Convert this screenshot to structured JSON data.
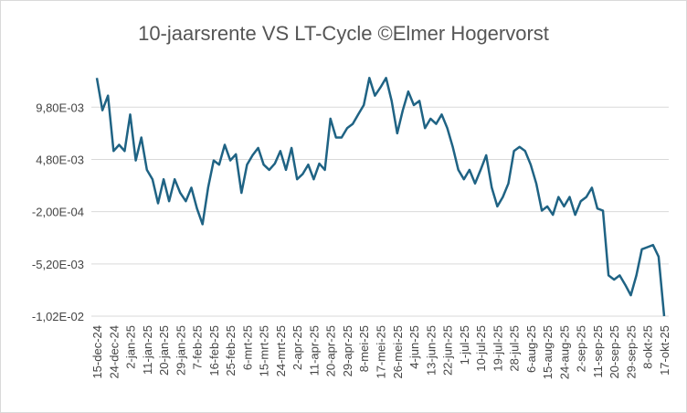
{
  "chart_data": {
    "type": "line",
    "title": "10-jaarsrente VS LT-Cycle ©Elmer Hogervorst",
    "categories": [
      "15-dec-24",
      null,
      null,
      "24-dec-24",
      null,
      null,
      "2-jan-25",
      null,
      null,
      "11-jan-25",
      null,
      null,
      "20-jan-25",
      null,
      null,
      "29-jan-25",
      null,
      null,
      "7-feb-25",
      null,
      null,
      "16-feb-25",
      null,
      null,
      "25-feb-25",
      null,
      null,
      "6-mrt-25",
      null,
      null,
      "15-mrt-25",
      null,
      null,
      "24-mrt-25",
      null,
      null,
      "2-apr-25",
      null,
      null,
      "11-apr-25",
      null,
      null,
      "20-apr-25",
      null,
      null,
      "29-apr-25",
      null,
      null,
      "8-mei-25",
      null,
      null,
      "17-mei-25",
      null,
      null,
      "26-mei-25",
      null,
      null,
      "4-jun-25",
      null,
      null,
      "13-jun-25",
      null,
      null,
      "22-jun-25",
      null,
      null,
      "1-jul-25",
      null,
      null,
      "10-jul-25",
      null,
      null,
      "19-jul-25",
      null,
      null,
      "28-jul-25",
      null,
      null,
      "6-aug-25",
      null,
      null,
      "15-aug-25",
      null,
      null,
      "24-aug-25",
      null,
      null,
      "2-sep-25",
      null,
      null,
      "11-sep-25",
      null,
      null,
      "20-sep-25",
      null,
      null,
      "29-sep-25",
      null,
      null,
      "8-okt-25",
      null,
      null,
      "17-okt-25"
    ],
    "series": [
      {
        "name": "10-jaarsrente",
        "color": "#1f6384",
        "values": [
          0.0126,
          0.0095,
          0.0109,
          0.0056,
          0.0062,
          0.0056,
          0.0091,
          0.0047,
          0.0069,
          0.0038,
          0.0029,
          0.0006,
          0.0029,
          0.0008,
          0.0029,
          0.0016,
          0.0008,
          0.0021,
          0.0001,
          -0.0014,
          0.0021,
          0.0047,
          0.0043,
          0.0062,
          0.0047,
          0.0053,
          0.0016,
          0.0043,
          0.0052,
          0.0059,
          0.0043,
          0.0038,
          0.0044,
          0.0056,
          0.0038,
          0.0059,
          0.0029,
          0.0034,
          0.0043,
          0.0029,
          0.0044,
          0.0038,
          0.0087,
          0.0069,
          0.0069,
          0.0078,
          0.0082,
          0.0091,
          0.01,
          0.0126,
          0.0109,
          0.0117,
          0.0126,
          0.0104,
          0.0073,
          0.0095,
          0.0113,
          0.01,
          0.0104,
          0.0078,
          0.0087,
          0.0082,
          0.0091,
          0.0078,
          0.006,
          0.0038,
          0.0029,
          0.0038,
          0.0025,
          0.0038,
          0.0052,
          0.0021,
          0.0003,
          0.0012,
          0.0025,
          0.0056,
          0.006,
          0.0056,
          0.0043,
          0.0025,
          -0.0001,
          0.0003,
          -0.0005,
          0.0012,
          0.0003,
          0.0012,
          -0.0005,
          0.0008,
          0.0012,
          0.0021,
          0.0001,
          -0.0001,
          -0.0063,
          -0.0067,
          -0.0063,
          -0.0072,
          -0.0082,
          -0.0063,
          -0.0038,
          -0.0036,
          -0.0034,
          -0.0045,
          -0.0102
        ]
      }
    ],
    "ylim": [
      -0.0102,
      0.0135
    ],
    "yticks": [
      {
        "value": -0.0102,
        "label": "-1,02E-02"
      },
      {
        "value": -0.0052,
        "label": "-5,20E-03"
      },
      {
        "value": -0.0002,
        "label": "-2,00E-04"
      },
      {
        "value": 0.0048,
        "label": "4,80E-03"
      },
      {
        "value": 0.0098,
        "label": "9,80E-03"
      }
    ],
    "grid": true
  }
}
